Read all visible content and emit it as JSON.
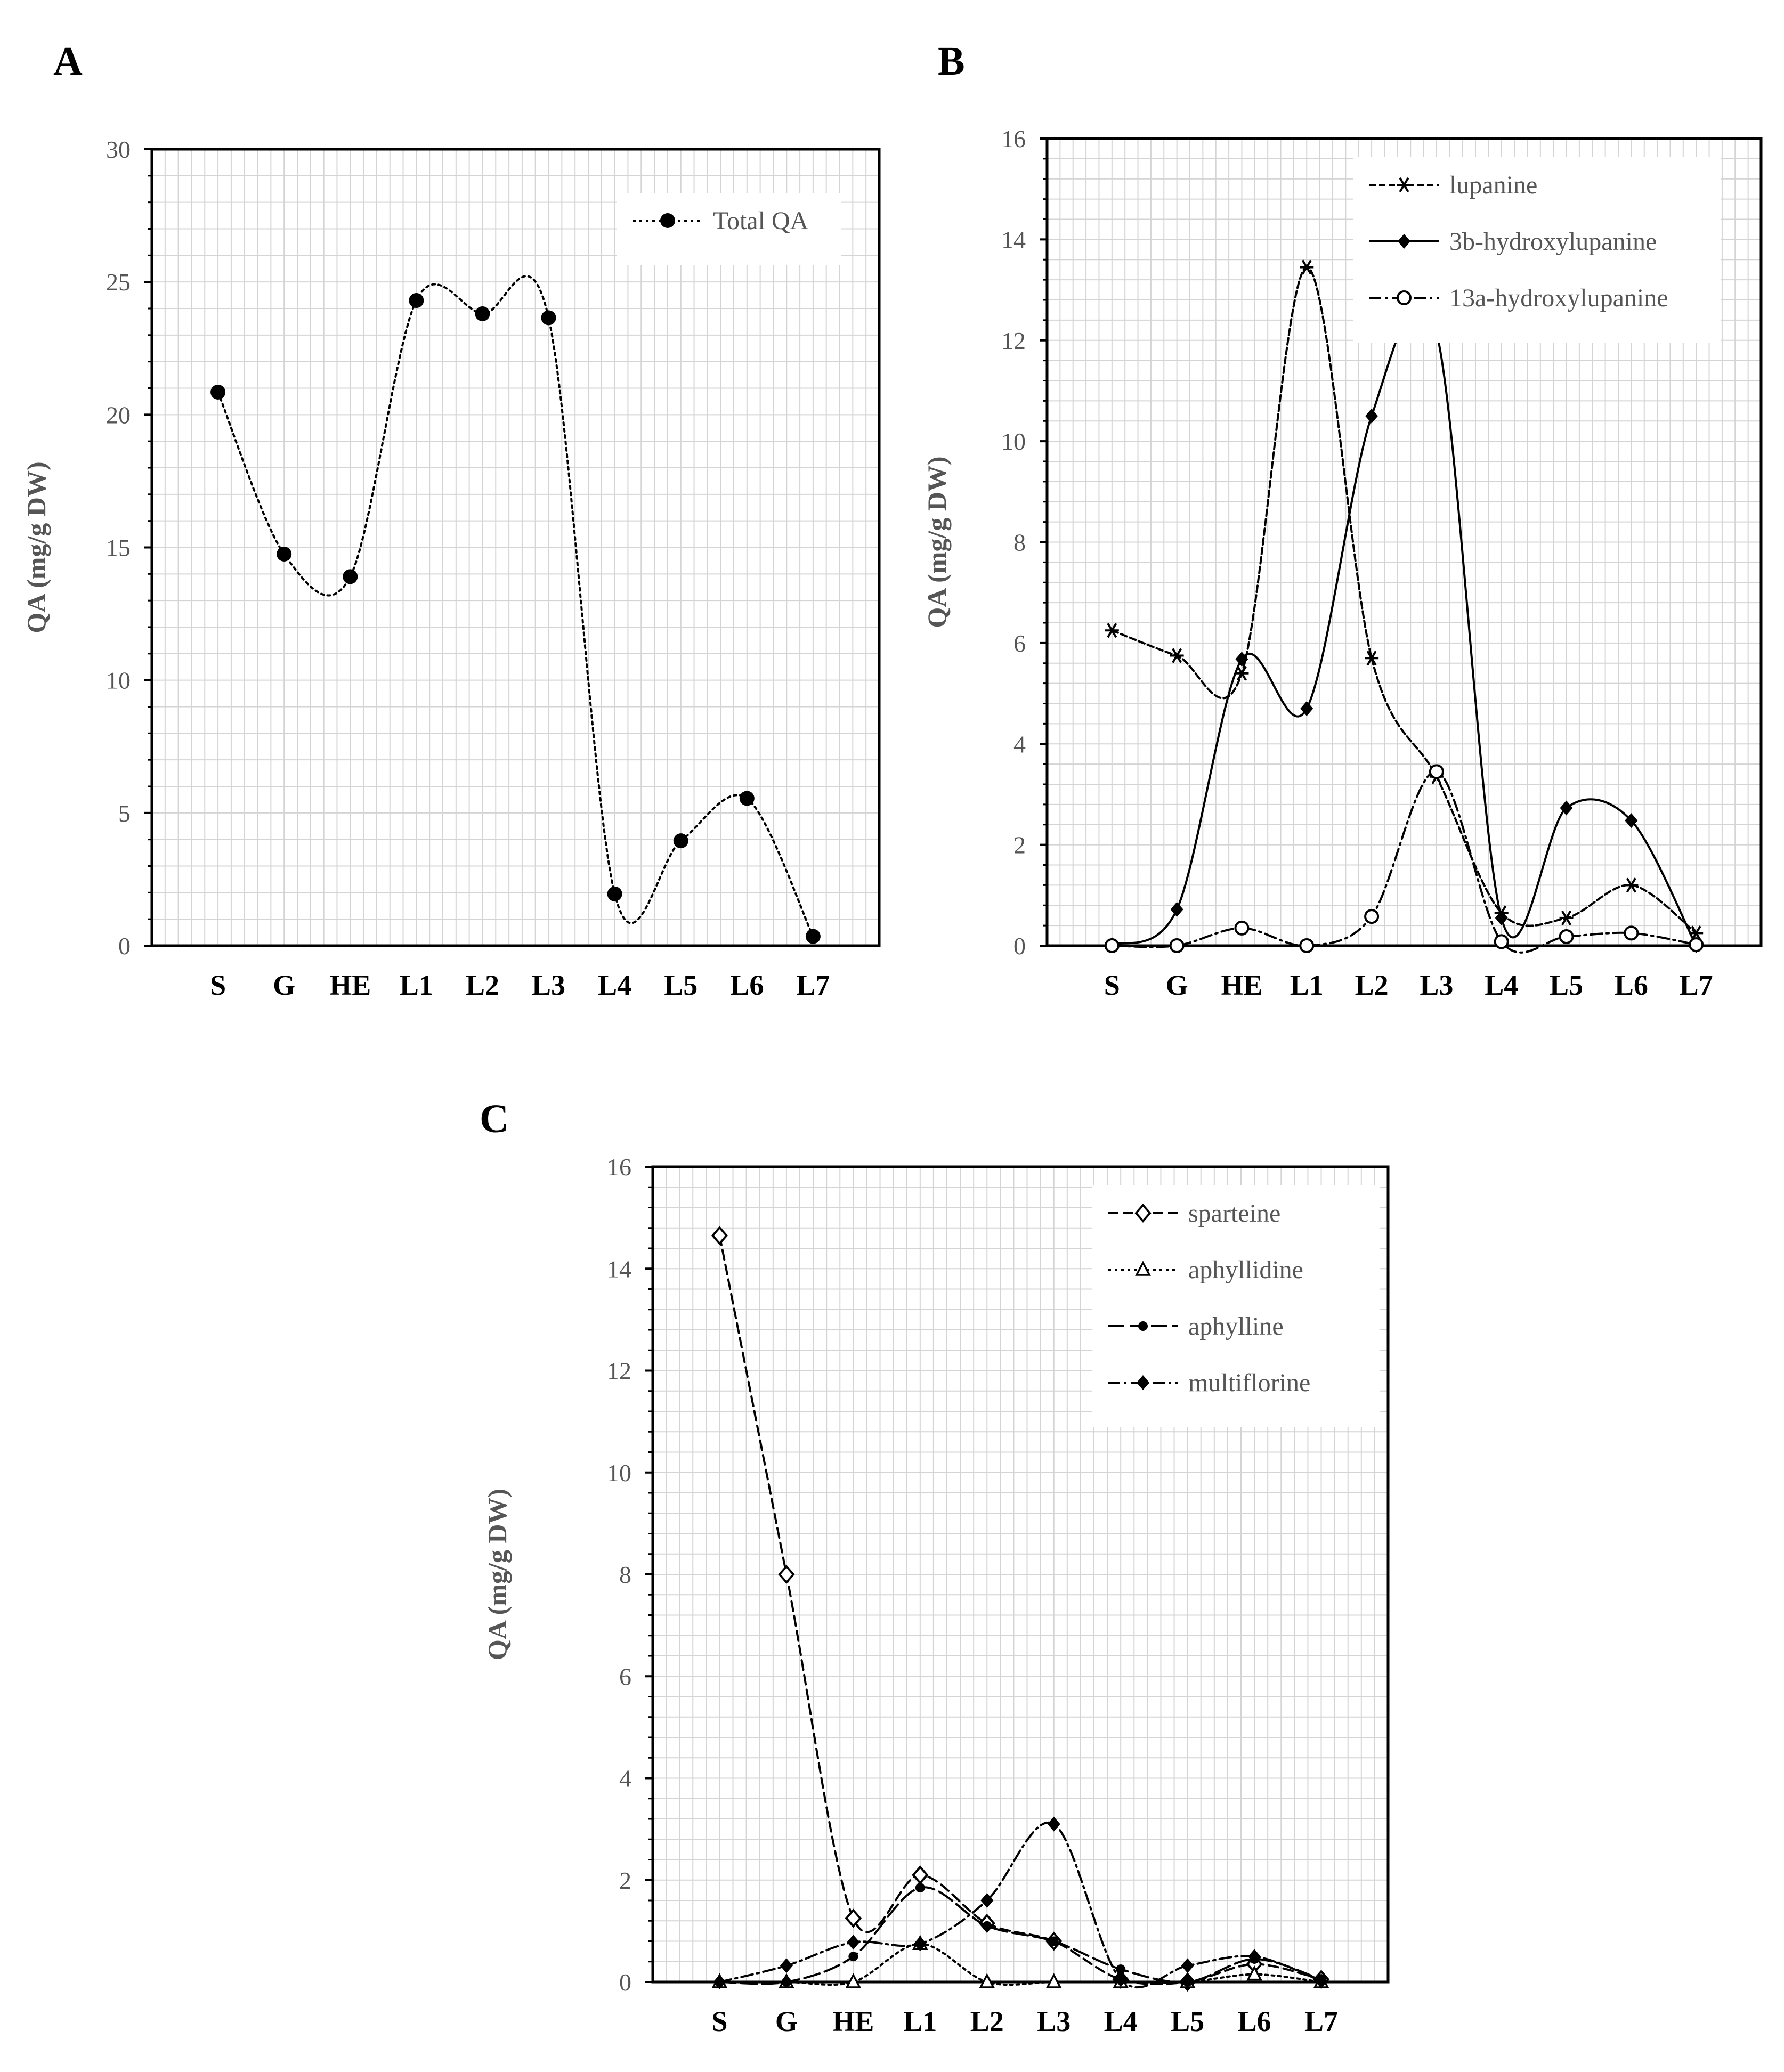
{
  "figure": {
    "panels": [
      "A",
      "B",
      "C"
    ]
  },
  "colors": {
    "ink": "#000000",
    "grid": "#d4d4d4",
    "axis_text": "#555555",
    "background": "#ffffff"
  },
  "chart_data": [
    {
      "panel": "A",
      "type": "line",
      "title": "",
      "xlabel": "",
      "ylabel": "QA (mg/g DW)",
      "categories": [
        "S",
        "G",
        "HE",
        "L1",
        "L2",
        "L3",
        "L4",
        "L5",
        "L6",
        "L7"
      ],
      "ylim": [
        0,
        30
      ],
      "yticks": [
        0,
        5,
        10,
        15,
        20,
        25,
        30
      ],
      "grid": true,
      "legend_position": "top-right",
      "series": [
        {
          "name": "Total QA",
          "marker": "filled-circle",
          "dash": "dotted",
          "values": [
            20.85,
            14.75,
            13.9,
            24.3,
            23.8,
            23.65,
            1.95,
            3.95,
            5.55,
            0.35
          ]
        }
      ]
    },
    {
      "panel": "B",
      "type": "line",
      "title": "",
      "xlabel": "",
      "ylabel": "QA (mg/g  DW)",
      "categories": [
        "S",
        "G",
        "HE",
        "L1",
        "L2",
        "L3",
        "L4",
        "L5",
        "L6",
        "L7"
      ],
      "ylim": [
        0,
        16
      ],
      "yticks": [
        0,
        2,
        4,
        6,
        8,
        10,
        12,
        14,
        16
      ],
      "grid": true,
      "legend_position": "top-right",
      "series": [
        {
          "name": "lupanine",
          "marker": "asterisk",
          "dash": "short-dash",
          "values": [
            6.25,
            5.75,
            5.4,
            13.45,
            5.7,
            3.35,
            0.65,
            0.55,
            1.2,
            0.25
          ]
        },
        {
          "name": "3b-hydroxylupanine",
          "marker": "filled-diamond",
          "dash": "solid",
          "values": [
            0.02,
            0.72,
            5.68,
            4.7,
            10.5,
            12.15,
            0.55,
            2.73,
            2.48,
            0.0
          ]
        },
        {
          "name": "13a-hydroxylupanine",
          "marker": "open-circle",
          "dash": "dash-dot",
          "values": [
            0.0,
            0.0,
            0.35,
            0.0,
            0.58,
            3.45,
            0.08,
            0.18,
            0.25,
            0.02
          ]
        }
      ]
    },
    {
      "panel": "C",
      "type": "line",
      "title": "",
      "xlabel": "",
      "ylabel": "QA (mg/g DW)",
      "categories": [
        "S",
        "G",
        "HE",
        "L1",
        "L2",
        "L3",
        "L4",
        "L5",
        "L6",
        "L7"
      ],
      "ylim": [
        0,
        16
      ],
      "yticks": [
        0,
        2,
        4,
        6,
        8,
        10,
        12,
        14,
        16
      ],
      "grid": true,
      "legend_position": "top-right",
      "series": [
        {
          "name": "sparteine",
          "marker": "open-diamond",
          "dash": "dashed",
          "values": [
            14.65,
            8.0,
            1.25,
            2.1,
            1.15,
            0.8,
            0.05,
            0.0,
            0.35,
            0.05
          ]
        },
        {
          "name": "aphyllidine",
          "marker": "open-triangle",
          "dash": "dotted",
          "values": [
            0.0,
            0.0,
            0.0,
            0.75,
            0.0,
            0.0,
            0.0,
            0.0,
            0.15,
            0.0
          ]
        },
        {
          "name": "aphylline",
          "marker": "small-filled-circle",
          "dash": "long-dash",
          "values": [
            0.0,
            0.0,
            0.5,
            1.85,
            1.1,
            0.8,
            0.25,
            0.0,
            0.45,
            0.05
          ]
        },
        {
          "name": "multiflorine",
          "marker": "filled-diamond",
          "dash": "dash-dot",
          "values": [
            0.0,
            0.32,
            0.78,
            0.75,
            1.6,
            3.1,
            0.05,
            0.32,
            0.5,
            0.02
          ]
        }
      ]
    }
  ]
}
